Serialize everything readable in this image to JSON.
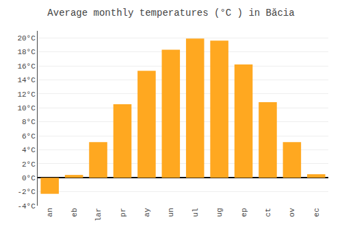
{
  "chart_data": {
    "type": "bar",
    "title": "Average monthly temperatures (°C ) in Băcia",
    "categories": [
      "an",
      "eb",
      "lar",
      "pr",
      "ay",
      "un",
      "ul",
      "ug",
      "ep",
      "ct",
      "ov",
      "ec"
    ],
    "values": [
      -2.3,
      0.4,
      5.1,
      10.5,
      15.3,
      18.3,
      19.9,
      19.6,
      16.2,
      10.8,
      5.1,
      0.5
    ],
    "color": "#FFA820",
    "ylim": [
      -4,
      21
    ],
    "yticks": [
      {
        "value": -4,
        "label": "-4°C"
      },
      {
        "value": -2,
        "label": "-2°C"
      },
      {
        "value": 0,
        "label": "0°C"
      },
      {
        "value": 2,
        "label": "2°C"
      },
      {
        "value": 4,
        "label": "4°C"
      },
      {
        "value": 6,
        "label": "6°C"
      },
      {
        "value": 8,
        "label": "8°C"
      },
      {
        "value": 10,
        "label": "10°C"
      },
      {
        "value": 12,
        "label": "12°C"
      },
      {
        "value": 14,
        "label": "14°C"
      },
      {
        "value": 16,
        "label": "16°C"
      },
      {
        "value": 18,
        "label": "18°C"
      },
      {
        "value": 20,
        "label": "20°C"
      }
    ],
    "grid": true
  }
}
